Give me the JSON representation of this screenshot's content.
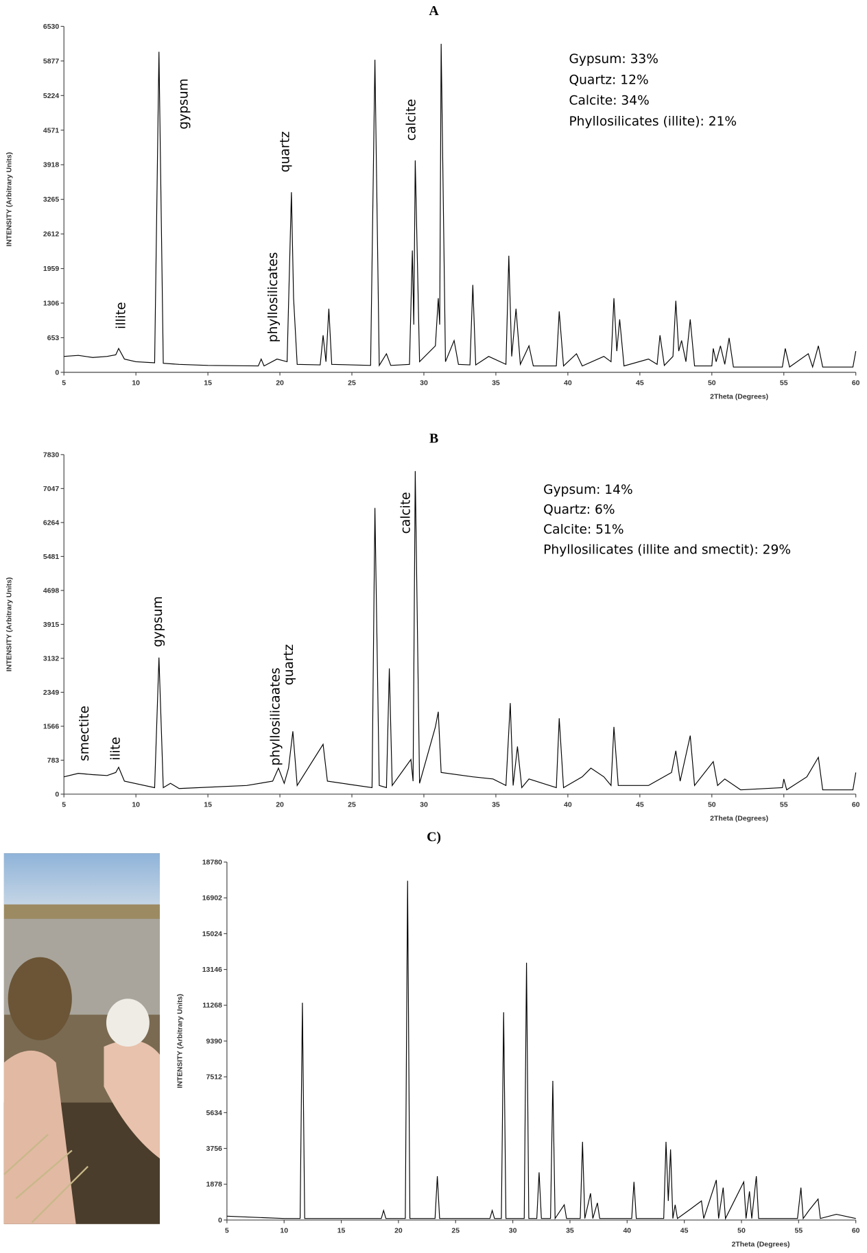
{
  "chart_data": [
    {
      "type": "line",
      "title": "A",
      "xlabel": "2Theta (Degrees)",
      "ylabel": "INTENSITY (Arbitrary Units)",
      "color": "#000000",
      "xlim": [
        5,
        60
      ],
      "xticks": [
        5,
        10,
        15,
        20,
        25,
        30,
        35,
        40,
        45,
        50,
        55,
        60
      ],
      "ylim": [
        0,
        6530
      ],
      "yticks": [
        0,
        653,
        1306,
        1959,
        2612,
        3265,
        3918,
        4571,
        5224,
        5877,
        6530
      ],
      "annotations": [
        "illite",
        "gypsum",
        "quartz",
        "phyllosilicates",
        "calcite"
      ],
      "composition": [
        "Gypsum: 33%",
        "Quartz: 12%",
        "Calcite: 34%",
        "Phyllosilicates (illite): 21%"
      ],
      "x": [
        5,
        6,
        7,
        8,
        8.6,
        8.8,
        9.2,
        10,
        11.3,
        11.6,
        11.9,
        13,
        15,
        18.5,
        18.7,
        18.9,
        19.8,
        20.5,
        20.8,
        20.95,
        21.2,
        22.8,
        23.0,
        23.2,
        23.4,
        23.6,
        26.3,
        26.6,
        26.9,
        27.4,
        27.7,
        29.0,
        29.2,
        29.3,
        29.4,
        29.7,
        30.8,
        31.0,
        31.1,
        31.2,
        31.5,
        32.1,
        32.4,
        33.2,
        33.4,
        33.6,
        34.5,
        35.7,
        35.9,
        36.1,
        36.4,
        36.7,
        37.3,
        37.6,
        39.2,
        39.4,
        39.7,
        40.6,
        41,
        42.5,
        43.0,
        43.2,
        43.4,
        43.6,
        43.9,
        45.6,
        46.2,
        46.4,
        46.7,
        47.3,
        47.5,
        47.7,
        47.9,
        48.2,
        48.5,
        48.8,
        50.0,
        50.1,
        50.3,
        50.6,
        50.9,
        51.2,
        51.5,
        54.9,
        55.1,
        55.4,
        56.7,
        57.0,
        57.4,
        57.7,
        59.8,
        60
      ],
      "values": [
        300,
        320,
        280,
        300,
        330,
        450,
        250,
        200,
        180,
        6050,
        170,
        150,
        130,
        120,
        250,
        120,
        250,
        200,
        3400,
        1400,
        150,
        140,
        700,
        200,
        1200,
        150,
        130,
        5900,
        130,
        350,
        130,
        150,
        2300,
        900,
        4000,
        200,
        500,
        1400,
        900,
        6200,
        200,
        600,
        150,
        140,
        1650,
        140,
        300,
        150,
        2200,
        300,
        1200,
        150,
        500,
        120,
        120,
        1150,
        120,
        350,
        120,
        300,
        200,
        1400,
        400,
        1000,
        120,
        250,
        150,
        700,
        130,
        300,
        1350,
        400,
        600,
        200,
        1000,
        120,
        120,
        450,
        200,
        500,
        150,
        650,
        100,
        100,
        450,
        100,
        350,
        100,
        500,
        100,
        100,
        400
      ]
    },
    {
      "type": "line",
      "title": "B",
      "xlabel": "2Theta (Degrees)",
      "ylabel": "INTENSITY (Arbitrary Units)",
      "color": "#000000",
      "xlim": [
        5,
        60
      ],
      "xticks": [
        5,
        10,
        15,
        20,
        25,
        30,
        35,
        40,
        45,
        50,
        55,
        60
      ],
      "ylim": [
        0,
        7830
      ],
      "yticks": [
        0,
        783,
        1566,
        2349,
        3132,
        3915,
        4698,
        5481,
        6264,
        7047,
        7830
      ],
      "annotations": [
        "smectite",
        "ilite",
        "gypsum",
        "phyllosilicaates",
        "quartz",
        "calcite"
      ],
      "composition": [
        "Gypsum: 14%",
        "Quartz: 6%",
        "Calcite: 51%",
        "Phyllosilicates (illite and smectit): 29%"
      ],
      "x": [
        5,
        6,
        7,
        8,
        8.6,
        8.8,
        9.2,
        11.3,
        11.6,
        11.9,
        12.4,
        13,
        17.7,
        19.5,
        19.9,
        20.3,
        20.6,
        20.9,
        21.2,
        23.0,
        23.3,
        26.4,
        26.6,
        26.9,
        27.4,
        27.6,
        27.8,
        29.1,
        29.25,
        29.4,
        29.7,
        30.8,
        31.0,
        31.2,
        33.4,
        34.8,
        35.7,
        36.0,
        36.2,
        36.5,
        36.8,
        37.3,
        39.2,
        39.4,
        39.7,
        41,
        41.6,
        42.5,
        43.0,
        43.2,
        43.5,
        45.6,
        47.2,
        47.5,
        47.8,
        48.5,
        48.8,
        50.1,
        50.4,
        50.9,
        52,
        54.9,
        55,
        55.2,
        56.6,
        57.4,
        57.7,
        59.8,
        60
      ],
      "values": [
        400,
        480,
        450,
        430,
        500,
        620,
        300,
        150,
        3150,
        150,
        250,
        130,
        200,
        300,
        600,
        250,
        600,
        1450,
        200,
        1150,
        300,
        150,
        6600,
        200,
        150,
        2900,
        200,
        800,
        300,
        7450,
        250,
        1550,
        1900,
        500,
        400,
        350,
        200,
        2100,
        200,
        1100,
        150,
        350,
        150,
        1750,
        150,
        400,
        600,
        400,
        200,
        1550,
        200,
        200,
        500,
        1000,
        300,
        1350,
        200,
        750,
        200,
        350,
        100,
        150,
        350,
        100,
        400,
        850,
        100,
        100,
        500
      ]
    },
    {
      "type": "line",
      "title": "C)",
      "xlabel": "2Theta (Degrees)",
      "ylabel": "INTENSITY (Arbitrary Units)",
      "color": "#000000",
      "xlim": [
        5,
        60
      ],
      "xticks": [
        5,
        10,
        15,
        20,
        25,
        30,
        35,
        40,
        45,
        50,
        55,
        60
      ],
      "ylim": [
        0,
        18780
      ],
      "yticks": [
        0,
        1878,
        3756,
        5634,
        7512,
        9390,
        11268,
        13146,
        15024,
        16902,
        18780
      ],
      "x": [
        5,
        7,
        10,
        11.4,
        11.6,
        11.8,
        18.5,
        18.7,
        18.9,
        20.6,
        20.8,
        21.0,
        23.2,
        23.4,
        23.6,
        28.0,
        28.2,
        28.4,
        29.0,
        29.2,
        29.4,
        31.0,
        31.2,
        31.4,
        32.1,
        32.3,
        32.5,
        33.3,
        33.5,
        33.7,
        34.5,
        34.7,
        35.9,
        36.1,
        36.3,
        36.8,
        37.0,
        37.4,
        37.6,
        40.4,
        40.6,
        40.8,
        43.2,
        43.4,
        43.6,
        43.8,
        44.0,
        44.2,
        44.4,
        45.6,
        46.5,
        46.7,
        47.8,
        48.0,
        48.4,
        48.6,
        50.2,
        50.4,
        50.7,
        50.9,
        51.3,
        51.5,
        54.9,
        55.2,
        55.4,
        55.9,
        56.7,
        56.9,
        58.3,
        60
      ],
      "values": [
        200,
        150,
        80,
        80,
        11400,
        80,
        80,
        500,
        80,
        80,
        17800,
        80,
        80,
        2300,
        80,
        80,
        500,
        80,
        80,
        10900,
        80,
        80,
        13500,
        80,
        80,
        2500,
        80,
        80,
        7300,
        80,
        800,
        80,
        80,
        4100,
        80,
        1400,
        80,
        900,
        80,
        80,
        2000,
        80,
        80,
        4100,
        1000,
        3700,
        80,
        800,
        80,
        600,
        1000,
        80,
        2100,
        80,
        1700,
        80,
        2000,
        80,
        1500,
        80,
        2300,
        80,
        80,
        1700,
        80,
        500,
        1100,
        80,
        300,
        80
      ]
    }
  ]
}
